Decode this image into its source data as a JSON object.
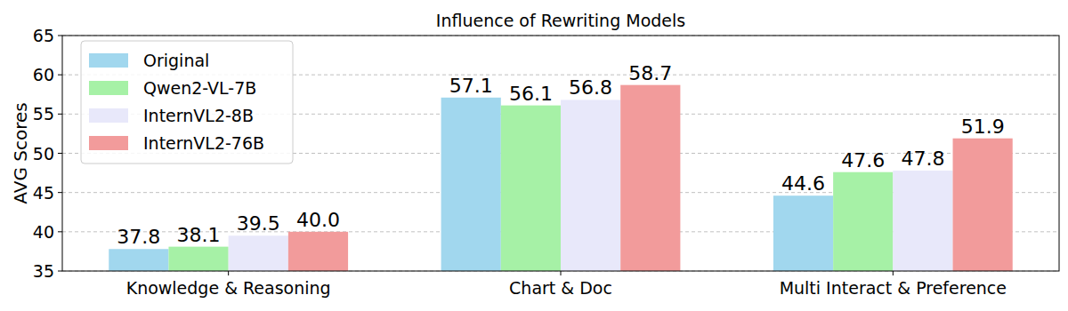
{
  "chart_data": {
    "type": "bar",
    "title": "Influence of Rewriting Models",
    "y_label": "AVG Scores",
    "categories": [
      "Knowledge & Reasoning",
      "Chart & Doc",
      "Multi Interact & Preference"
    ],
    "series": [
      {
        "name": "Original",
        "color": "#a1d7ee",
        "values": [
          37.8,
          57.1,
          44.6
        ]
      },
      {
        "name": "Qwen2-VL-7B",
        "color": "#a6f1a6",
        "values": [
          38.1,
          56.1,
          47.6
        ]
      },
      {
        "name": "InternVL2-8B",
        "color": "#e8e8fa",
        "values": [
          39.5,
          56.8,
          47.8
        ]
      },
      {
        "name": "InternVL2-76B",
        "color": "#f29b9b",
        "values": [
          40.0,
          58.7,
          51.9
        ]
      }
    ],
    "ylim": [
      35,
      65
    ],
    "yticks": [
      35,
      40,
      45,
      50,
      55,
      60,
      65
    ],
    "grid": true,
    "legend": "upper left",
    "data_labels": true
  }
}
